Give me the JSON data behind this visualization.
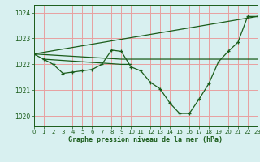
{
  "title": "Graphe pression niveau de la mer (hPa)",
  "background_color": "#d8f0f0",
  "grid_color": "#e8a0a0",
  "line_color": "#1a5c1a",
  "xlim": [
    0,
    23
  ],
  "ylim": [
    1019.6,
    1024.3
  ],
  "yticks": [
    1020,
    1021,
    1022,
    1023,
    1024
  ],
  "xticks": [
    0,
    1,
    2,
    3,
    4,
    5,
    6,
    7,
    8,
    9,
    10,
    11,
    12,
    13,
    14,
    15,
    16,
    17,
    18,
    19,
    20,
    21,
    22,
    23
  ],
  "series": [
    {
      "x": [
        0,
        1,
        2,
        3,
        4,
        5,
        6,
        7,
        8,
        9,
        10,
        11,
        12,
        13,
        14,
        15,
        16,
        17,
        18,
        19,
        20,
        21,
        22,
        23
      ],
      "y": [
        1022.4,
        1022.2,
        1022.0,
        1021.65,
        1021.7,
        1021.75,
        1021.8,
        1022.0,
        1022.55,
        1022.5,
        1021.9,
        1021.75,
        1021.3,
        1021.05,
        1020.5,
        1020.1,
        1020.1,
        1020.65,
        1021.25,
        1022.1,
        1022.5,
        1022.85,
        1023.85,
        1023.85
      ]
    },
    {
      "x": [
        0,
        23
      ],
      "y": [
        1022.4,
        1023.85
      ],
      "no_markers": true
    },
    {
      "x": [
        0,
        9,
        10,
        23
      ],
      "y": [
        1022.4,
        1022.2,
        1022.2,
        1022.2
      ],
      "no_markers": true
    },
    {
      "x": [
        1,
        9,
        10
      ],
      "y": [
        1022.2,
        1022.0,
        1022.0
      ],
      "no_markers": true
    }
  ]
}
